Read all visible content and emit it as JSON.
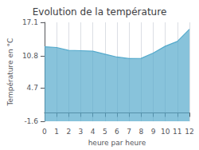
{
  "chart_data": {
    "type": "area",
    "title": "Evolution de la température",
    "xlabel": "heure par heure",
    "ylabel": "Température en °C",
    "x": [
      0,
      1,
      2,
      3,
      4,
      5,
      6,
      7,
      8,
      9,
      10,
      11,
      12
    ],
    "values": [
      12.5,
      12.35,
      11.8,
      11.75,
      11.65,
      11.1,
      10.55,
      10.25,
      10.3,
      11.3,
      12.6,
      13.5,
      15.8
    ],
    "color": "#55aacc",
    "xlim": [
      0,
      12
    ],
    "xticks": [
      0,
      1,
      2,
      3,
      4,
      5,
      6,
      7,
      8,
      9,
      10,
      11,
      12
    ],
    "ylim": [
      -1.6,
      17.1
    ],
    "yticks": [
      -1.6,
      4.7,
      10.8,
      17.1
    ],
    "grid": "x"
  }
}
